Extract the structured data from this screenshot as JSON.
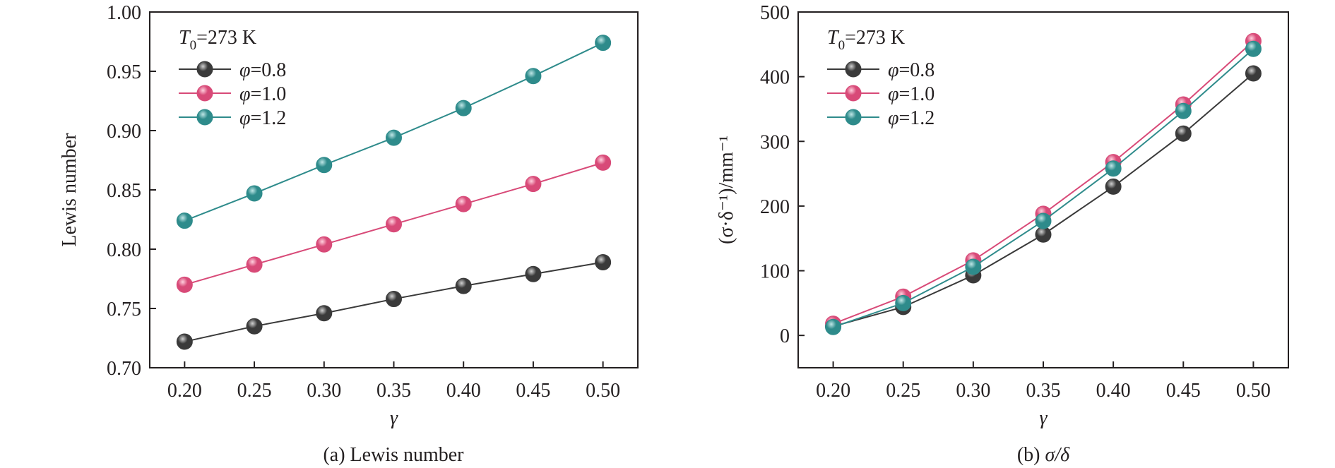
{
  "chart_data": [
    {
      "type": "line",
      "caption": "(a) Lewis number",
      "xlabel": "γ",
      "ylabel": "Lewis number",
      "annotation": "T0=273 K",
      "annotation_main": "T",
      "annotation_sub": "0",
      "annotation_rest": "=273 K",
      "xlim": [
        0.175,
        0.525
      ],
      "ylim": [
        0.7,
        1.0
      ],
      "xticks": [
        0.2,
        0.25,
        0.3,
        0.35,
        0.4,
        0.45,
        0.5
      ],
      "xtick_labels": [
        "0.20",
        "0.25",
        "0.30",
        "0.35",
        "0.40",
        "0.45",
        "0.50"
      ],
      "yticks": [
        0.7,
        0.75,
        0.8,
        0.85,
        0.9,
        0.95,
        1.0
      ],
      "ytick_labels": [
        "0.70",
        "0.75",
        "0.80",
        "0.85",
        "0.90",
        "0.95",
        "1.00"
      ],
      "legend_position": "top-left",
      "x": [
        0.2,
        0.25,
        0.3,
        0.35,
        0.4,
        0.45,
        0.5
      ],
      "series": [
        {
          "name": "φ=0.8",
          "name_symbol": "φ",
          "name_value": "=0.8",
          "color": "#3a3a3a",
          "highlight": "#d0d0d0",
          "values": [
            0.722,
            0.735,
            0.746,
            0.758,
            0.769,
            0.779,
            0.789
          ]
        },
        {
          "name": "φ=1.0",
          "name_symbol": "φ",
          "name_value": "=1.0",
          "color": "#d84a78",
          "highlight": "#ffd0de",
          "values": [
            0.77,
            0.787,
            0.804,
            0.821,
            0.838,
            0.855,
            0.873
          ]
        },
        {
          "name": "φ=1.2",
          "name_symbol": "φ",
          "name_value": "=1.2",
          "color": "#2e8b8b",
          "highlight": "#bfe6e6",
          "values": [
            0.824,
            0.847,
            0.871,
            0.894,
            0.919,
            0.946,
            0.974
          ]
        }
      ]
    },
    {
      "type": "line",
      "caption": "(b) σ/δ",
      "caption_prefix": "(b) ",
      "caption_math": "σ/δ",
      "xlabel": "γ",
      "ylabel": "(σ·δ⁻¹)/mm⁻¹",
      "annotation": "T0=273 K",
      "annotation_main": "T",
      "annotation_sub": "0",
      "annotation_rest": "=273 K",
      "xlim": [
        0.175,
        0.525
      ],
      "ylim": [
        -50,
        500
      ],
      "xticks": [
        0.2,
        0.25,
        0.3,
        0.35,
        0.4,
        0.45,
        0.5
      ],
      "xtick_labels": [
        "0.20",
        "0.25",
        "0.30",
        "0.35",
        "0.40",
        "0.45",
        "0.50"
      ],
      "yticks": [
        0,
        100,
        200,
        300,
        400,
        500
      ],
      "ytick_labels": [
        "0",
        "100",
        "200",
        "300",
        "400",
        "500"
      ],
      "legend_position": "top-left",
      "x": [
        0.2,
        0.25,
        0.3,
        0.35,
        0.4,
        0.45,
        0.5
      ],
      "series": [
        {
          "name": "φ=0.8",
          "name_symbol": "φ",
          "name_value": "=0.8",
          "color": "#3a3a3a",
          "highlight": "#d0d0d0",
          "values": [
            14,
            44,
            93,
            156,
            230,
            312,
            405
          ]
        },
        {
          "name": "φ=1.0",
          "name_symbol": "φ",
          "name_value": "=1.0",
          "color": "#d84a78",
          "highlight": "#ffd0de",
          "values": [
            18,
            60,
            116,
            188,
            268,
            357,
            455
          ]
        },
        {
          "name": "φ=1.2",
          "name_symbol": "φ",
          "name_value": "=1.2",
          "color": "#2e8b8b",
          "highlight": "#bfe6e6",
          "values": [
            13,
            50,
            106,
            177,
            258,
            347,
            443
          ]
        }
      ]
    }
  ]
}
